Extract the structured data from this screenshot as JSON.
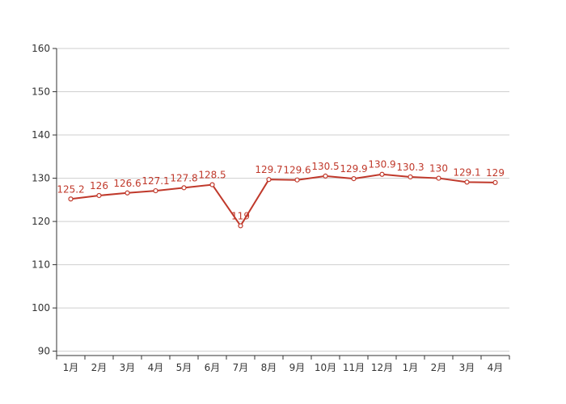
{
  "chart_data": {
    "type": "line",
    "title": "",
    "xlabel": "",
    "ylabel": "",
    "categories": [
      "1月",
      "2月",
      "3月",
      "4月",
      "5月",
      "6月",
      "7月",
      "8月",
      "9月",
      "10月",
      "11月",
      "12月",
      "1月",
      "2月",
      "3月",
      "4月"
    ],
    "series": [
      {
        "values": [
          125.2,
          126,
          126.6,
          127.1,
          127.8,
          128.5,
          119,
          129.7,
          129.6,
          130.5,
          129.9,
          130.9,
          130.3,
          130,
          129.1,
          129
        ],
        "labels": [
          "125.2",
          "126",
          "126.6",
          "127.1",
          "127.8",
          "128.5",
          "119",
          "129.7",
          "129.6",
          "130.5",
          "129.9",
          "130.9",
          "130.3",
          "130",
          "129.1",
          "129"
        ],
        "color": "#c0392b"
      }
    ],
    "ylim": [
      89,
      160
    ],
    "yticks": [
      90,
      100,
      110,
      120,
      130,
      140,
      150,
      160
    ],
    "ytick_labels": [
      "90",
      "100",
      "110",
      "120",
      "130",
      "140",
      "150",
      "160"
    ],
    "grid": true,
    "legend": "none"
  }
}
